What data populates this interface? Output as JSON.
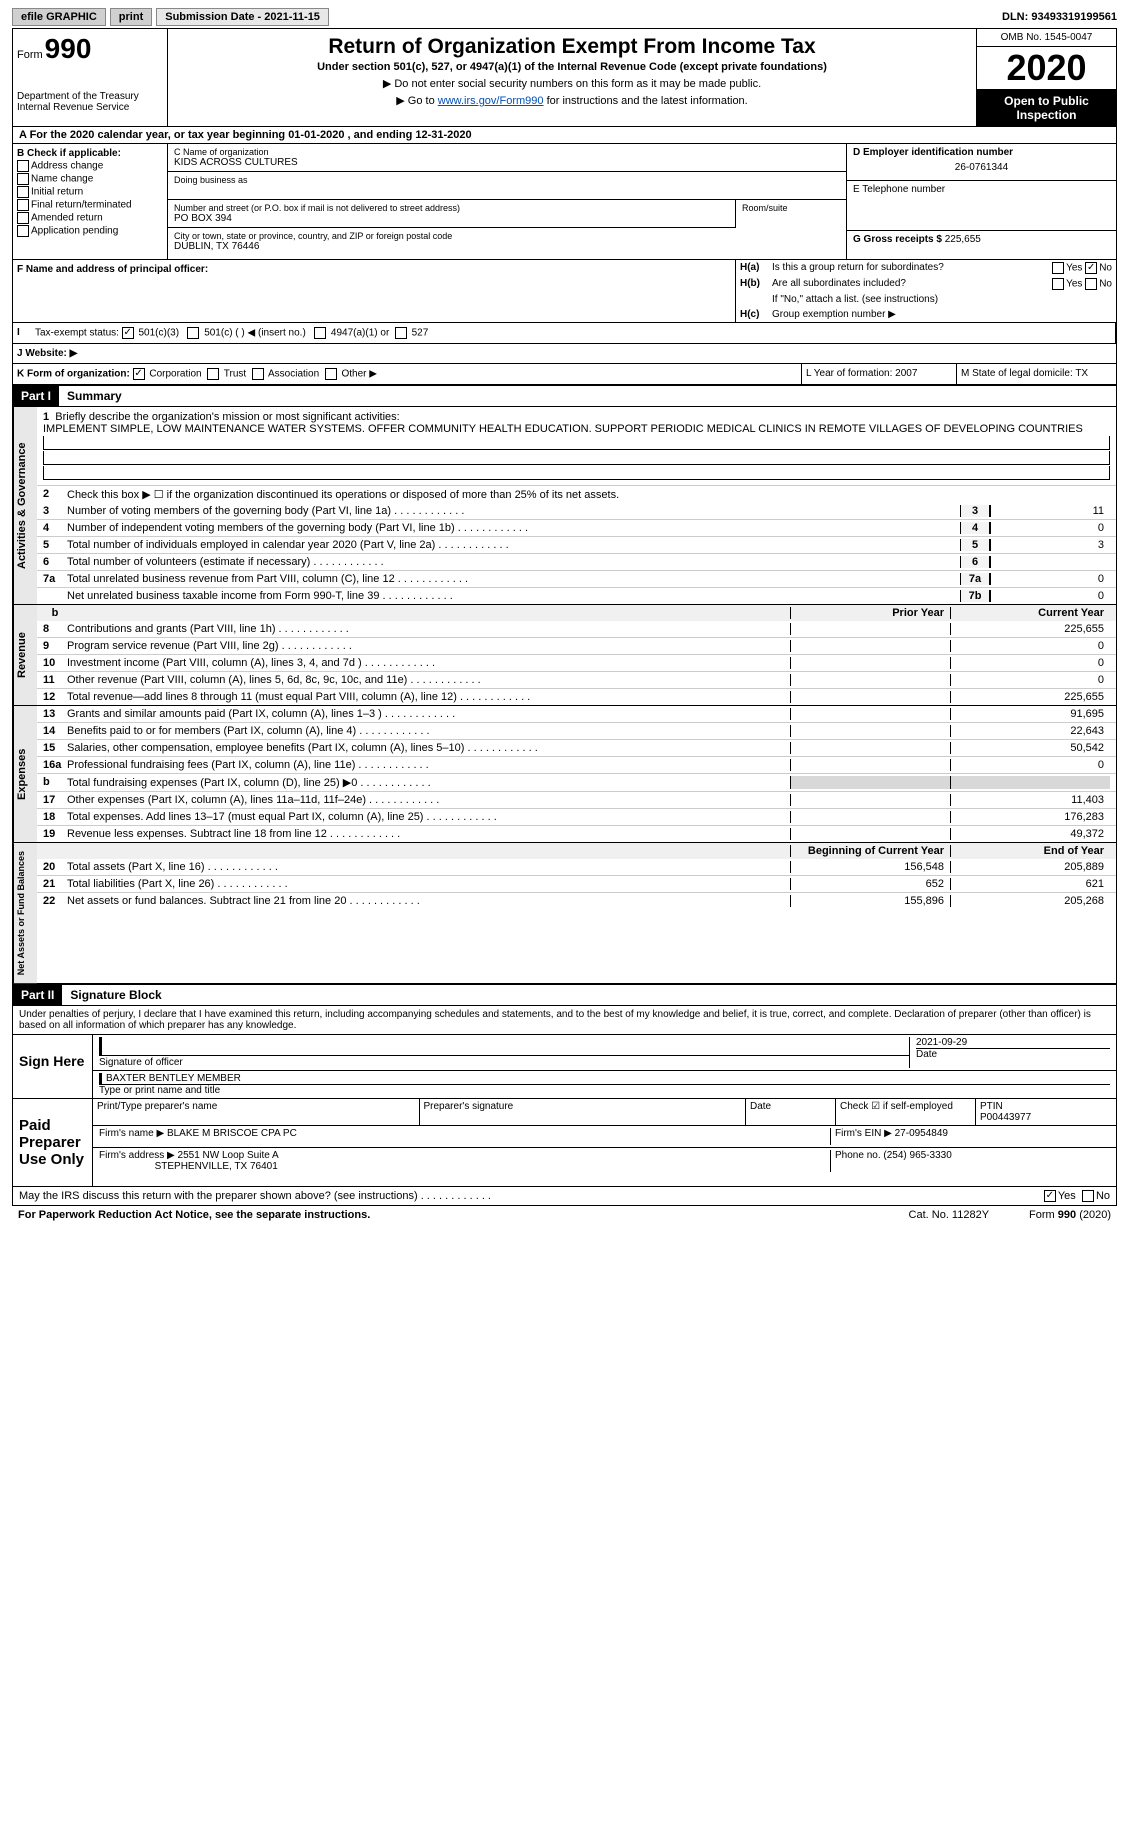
{
  "topbar": {
    "efile": "efile GRAPHIC",
    "print": "print",
    "submission": "Submission Date - 2021-11-15",
    "dln": "DLN: 93493319199561"
  },
  "header": {
    "form": "Form",
    "formno": "990",
    "dept": "Department of the Treasury\nInternal Revenue Service",
    "title": "Return of Organization Exempt From Income Tax",
    "subtitle": "Under section 501(c), 527, or 4947(a)(1) of the Internal Revenue Code (except private foundations)",
    "instr1": "▶ Do not enter social security numbers on this form as it may be made public.",
    "instr2a": "▶ Go to ",
    "instr2b": "www.irs.gov/Form990",
    "instr2c": " for instructions and the latest information.",
    "omb": "OMB No. 1545-0047",
    "year": "2020",
    "open": "Open to Public Inspection"
  },
  "rowA": "A  For the 2020 calendar year, or tax year beginning 01-01-2020   , and ending 12-31-2020",
  "sectionB": {
    "label": "B Check if applicable:",
    "opts": [
      "Address change",
      "Name change",
      "Initial return",
      "Final return/terminated",
      "Amended return",
      "Application pending"
    ]
  },
  "org": {
    "name_label": "C Name of organization",
    "name": "KIDS ACROSS CULTURES",
    "dba_label": "Doing business as",
    "addr_label": "Number and street (or P.O. box if mail is not delivered to street address)",
    "addr": "PO BOX 394",
    "room_label": "Room/suite",
    "city_label": "City or town, state or province, country, and ZIP or foreign postal code",
    "city": "DUBLIN, TX  76446",
    "officer_label": "F Name and address of principal officer:"
  },
  "right": {
    "ein_label": "D Employer identification number",
    "ein": "26-0761344",
    "phone_label": "E Telephone number",
    "gross_label": "G Gross receipts $",
    "gross": "225,655"
  },
  "h": {
    "a_label": "H(a)",
    "a_txt": "Is this a group return for subordinates?",
    "b_label": "H(b)",
    "b_txt": "Are all subordinates included?",
    "b_note": "If \"No,\" attach a list. (see instructions)",
    "c_label": "H(c)",
    "c_txt": "Group exemption number ▶",
    "yes": "Yes",
    "no": "No"
  },
  "i": {
    "label": "Tax-exempt status:",
    "opts": [
      "501(c)(3)",
      "501(c) (  ) ◀ (insert no.)",
      "4947(a)(1) or",
      "527"
    ]
  },
  "j": {
    "label": "J   Website: ▶"
  },
  "k": {
    "label": "K Form of organization:",
    "opts": [
      "Corporation",
      "Trust",
      "Association",
      "Other ▶"
    ],
    "l": "L Year of formation: 2007",
    "m": "M State of legal domicile: TX"
  },
  "part1": {
    "hdr": "Part I",
    "title": "Summary",
    "l1_label": "Briefly describe the organization's mission or most significant activities:",
    "l1_txt": "IMPLEMENT SIMPLE, LOW MAINTENANCE WATER SYSTEMS. OFFER COMMUNITY HEALTH EDUCATION. SUPPORT PERIODIC MEDICAL CLINICS IN REMOTE VILLAGES OF DEVELOPING COUNTRIES",
    "l2": "Check this box ▶ ☐  if the organization discontinued its operations or disposed of more than 25% of its net assets.",
    "lines_gov": [
      {
        "n": "3",
        "t": "Number of voting members of the governing body (Part VI, line 1a)",
        "b": "3",
        "v": "11"
      },
      {
        "n": "4",
        "t": "Number of independent voting members of the governing body (Part VI, line 1b)",
        "b": "4",
        "v": "0"
      },
      {
        "n": "5",
        "t": "Total number of individuals employed in calendar year 2020 (Part V, line 2a)",
        "b": "5",
        "v": "3"
      },
      {
        "n": "6",
        "t": "Total number of volunteers (estimate if necessary)",
        "b": "6",
        "v": ""
      },
      {
        "n": "7a",
        "t": "Total unrelated business revenue from Part VIII, column (C), line 12",
        "b": "7a",
        "v": "0"
      },
      {
        "n": "",
        "t": "Net unrelated business taxable income from Form 990-T, line 39",
        "b": "7b",
        "v": "0"
      }
    ],
    "col_prior": "Prior Year",
    "col_curr": "Current Year",
    "lines_rev": [
      {
        "n": "8",
        "t": "Contributions and grants (Part VIII, line 1h)",
        "p": "",
        "c": "225,655"
      },
      {
        "n": "9",
        "t": "Program service revenue (Part VIII, line 2g)",
        "p": "",
        "c": "0"
      },
      {
        "n": "10",
        "t": "Investment income (Part VIII, column (A), lines 3, 4, and 7d )",
        "p": "",
        "c": "0"
      },
      {
        "n": "11",
        "t": "Other revenue (Part VIII, column (A), lines 5, 6d, 8c, 9c, 10c, and 11e)",
        "p": "",
        "c": "0"
      },
      {
        "n": "12",
        "t": "Total revenue—add lines 8 through 11 (must equal Part VIII, column (A), line 12)",
        "p": "",
        "c": "225,655"
      }
    ],
    "lines_exp": [
      {
        "n": "13",
        "t": "Grants and similar amounts paid (Part IX, column (A), lines 1–3 )",
        "p": "",
        "c": "91,695"
      },
      {
        "n": "14",
        "t": "Benefits paid to or for members (Part IX, column (A), line 4)",
        "p": "",
        "c": "22,643"
      },
      {
        "n": "15",
        "t": "Salaries, other compensation, employee benefits (Part IX, column (A), lines 5–10)",
        "p": "",
        "c": "50,542"
      },
      {
        "n": "16a",
        "t": "Professional fundraising fees (Part IX, column (A), line 11e)",
        "p": "",
        "c": "0"
      },
      {
        "n": "b",
        "t": "Total fundraising expenses (Part IX, column (D), line 25) ▶0",
        "p": "shade",
        "c": "shade"
      },
      {
        "n": "17",
        "t": "Other expenses (Part IX, column (A), lines 11a–11d, 11f–24e)",
        "p": "",
        "c": "11,403"
      },
      {
        "n": "18",
        "t": "Total expenses. Add lines 13–17 (must equal Part IX, column (A), line 25)",
        "p": "",
        "c": "176,283"
      },
      {
        "n": "19",
        "t": "Revenue less expenses. Subtract line 18 from line 12",
        "p": "",
        "c": "49,372"
      }
    ],
    "col_begin": "Beginning of Current Year",
    "col_end": "End of Year",
    "lines_net": [
      {
        "n": "20",
        "t": "Total assets (Part X, line 16)",
        "p": "156,548",
        "c": "205,889"
      },
      {
        "n": "21",
        "t": "Total liabilities (Part X, line 26)",
        "p": "652",
        "c": "621"
      },
      {
        "n": "22",
        "t": "Net assets or fund balances. Subtract line 21 from line 20",
        "p": "155,896",
        "c": "205,268"
      }
    ],
    "sidebar_gov": "Activities & Governance",
    "sidebar_rev": "Revenue",
    "sidebar_exp": "Expenses",
    "sidebar_net": "Net Assets or Fund Balances"
  },
  "part2": {
    "hdr": "Part II",
    "title": "Signature Block",
    "decl": "Under penalties of perjury, I declare that I have examined this return, including accompanying schedules and statements, and to the best of my knowledge and belief, it is true, correct, and complete. Declaration of preparer (other than officer) is based on all information of which preparer has any knowledge.",
    "sign_here": "Sign Here",
    "sig_officer": "Signature of officer",
    "sig_date": "Date",
    "sig_date_val": "2021-09-29",
    "sig_name": "BAXTER BENTLEY MEMBER",
    "sig_name_label": "Type or print name and title",
    "paid": "Paid Preparer Use Only",
    "prep_name_label": "Print/Type preparer's name",
    "prep_sig_label": "Preparer's signature",
    "prep_date_label": "Date",
    "prep_check": "Check ☑ if self-employed",
    "ptin_label": "PTIN",
    "ptin": "P00443977",
    "firm_name_label": "Firm's name    ▶",
    "firm_name": "BLAKE M BRISCOE CPA PC",
    "firm_ein_label": "Firm's EIN ▶",
    "firm_ein": "27-0954849",
    "firm_addr_label": "Firm's address ▶",
    "firm_addr": "2551 NW Loop Suite A",
    "firm_city": "STEPHENVILLE, TX  76401",
    "phone_label": "Phone no.",
    "phone": "(254) 965-3330",
    "discuss": "May the IRS discuss this return with the preparer shown above? (see instructions)",
    "yes": "Yes",
    "no": "No"
  },
  "footer": {
    "pra": "For Paperwork Reduction Act Notice, see the separate instructions.",
    "cat": "Cat. No. 11282Y",
    "form": "Form 990 (2020)"
  }
}
